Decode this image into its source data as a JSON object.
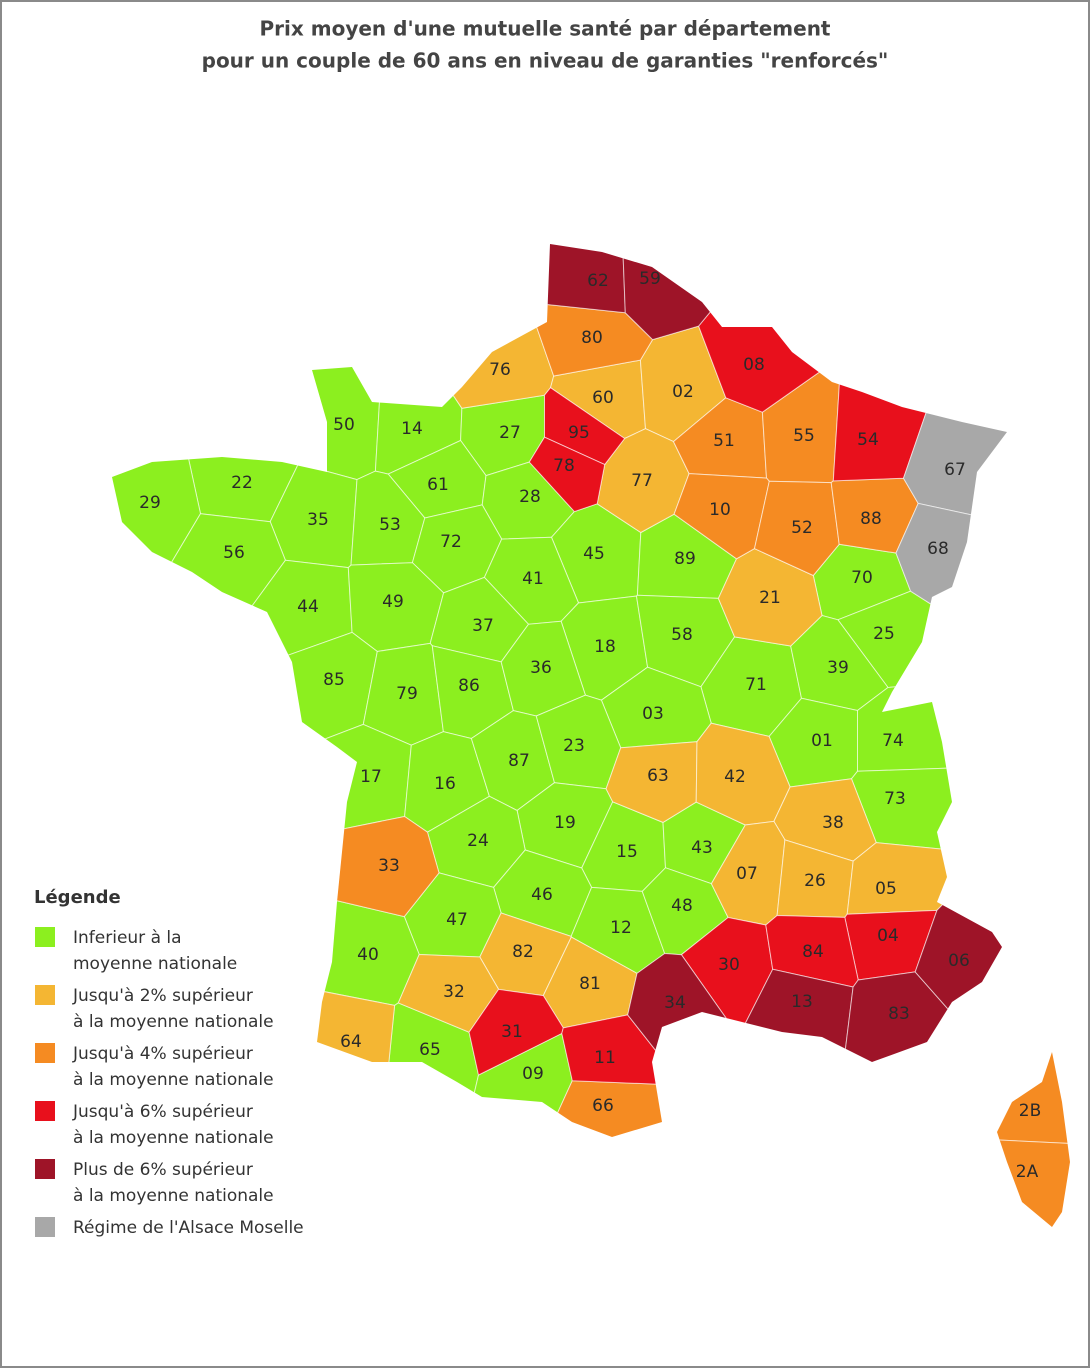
{
  "title": [
    "Prix moyen d'une mutuelle santé par département",
    "pour un couple de 60 ans en niveau de garanties \"renforcés\""
  ],
  "legend": {
    "title": "Légende",
    "items": [
      {
        "label": [
          "Inferieur à la",
          "moyenne nationale"
        ],
        "color": "#8cef1f",
        "departments": [
          "50",
          "14",
          "27",
          "22",
          "29",
          "61",
          "28",
          "35",
          "53",
          "72",
          "56",
          "45",
          "89",
          "41",
          "70",
          "44",
          "49",
          "37",
          "18",
          "58",
          "25",
          "85",
          "79",
          "86",
          "36",
          "71",
          "39",
          "03",
          "01",
          "74",
          "17",
          "16",
          "87",
          "23",
          "73",
          "19",
          "24",
          "15",
          "43",
          "46",
          "47",
          "12",
          "48",
          "40",
          "65",
          "09"
        ]
      },
      {
        "label": [
          "Jusqu'à 2% supérieur",
          "à la moyenne nationale"
        ],
        "color": "#f4b633",
        "departments": [
          "76",
          "60",
          "02",
          "77",
          "21",
          "63",
          "42",
          "38",
          "07",
          "26",
          "05",
          "82",
          "81",
          "32",
          "64"
        ]
      },
      {
        "label": [
          "Jusqu'à 4% supérieur",
          "à la moyenne nationale"
        ],
        "color": "#f58b22",
        "departments": [
          "80",
          "51",
          "55",
          "10",
          "52",
          "88",
          "33",
          "66",
          "2B",
          "2A"
        ]
      },
      {
        "label": [
          "Jusqu'à 6% supérieur",
          "à la moyenne nationale"
        ],
        "color": "#e8101c",
        "departments": [
          "08",
          "54",
          "95",
          "78",
          "04",
          "30",
          "84",
          "31",
          "11"
        ]
      },
      {
        "label": [
          "Plus de 6% supérieur",
          "à la moyenne nationale"
        ],
        "color": "#9e1428",
        "departments": [
          "62",
          "59",
          "34",
          "13",
          "83",
          "06"
        ]
      },
      {
        "label": [
          "Régime de l'Alsace Moselle"
        ],
        "color": "#a8a8a8",
        "departments": [
          "67",
          "68"
        ]
      }
    ]
  }
}
